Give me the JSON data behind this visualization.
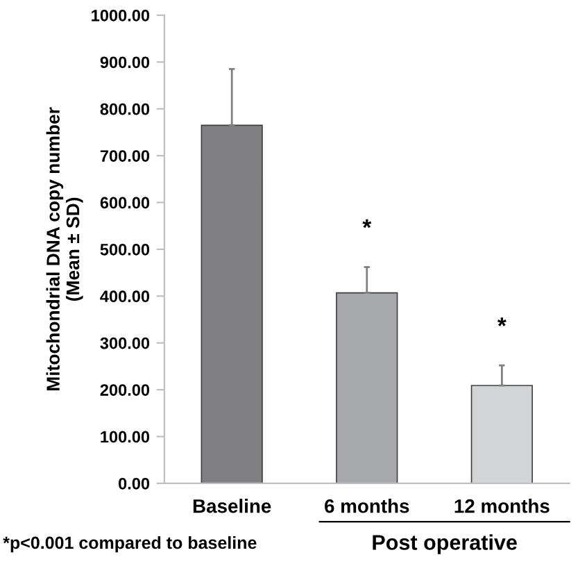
{
  "chart_data": {
    "type": "bar",
    "ylabel": "Mitochondrial DNA copy number\n(Mean ± SD)",
    "categories": [
      "Baseline",
      "6 months",
      "12 months"
    ],
    "values": [
      765,
      407,
      209
    ],
    "colors": [
      "#808083",
      "#a7a8ab",
      "#d3d4d5"
    ],
    "errors": [
      [
        765,
        885
      ],
      [
        407,
        462
      ],
      [
        209,
        252
      ]
    ],
    "ylim": [
      0,
      1000
    ],
    "yticks": [
      {
        "value": 0,
        "label": "0.00"
      },
      {
        "value": 100,
        "label": "100.00"
      },
      {
        "value": 200,
        "label": "200.00"
      },
      {
        "value": 300,
        "label": "300.00"
      },
      {
        "value": 400,
        "label": "400.00"
      },
      {
        "value": 500,
        "label": "500.00"
      },
      {
        "value": 600,
        "label": "600.00"
      },
      {
        "value": 700,
        "label": "700.00"
      },
      {
        "value": 800,
        "label": "800.00"
      },
      {
        "value": 900,
        "label": "900.00"
      },
      {
        "value": 1000,
        "label": "1000.00"
      }
    ],
    "grid": false,
    "legend": false,
    "annotations": [
      "*",
      "*",
      "*p<0.001 compared to baseline",
      "Post operative"
    ]
  }
}
